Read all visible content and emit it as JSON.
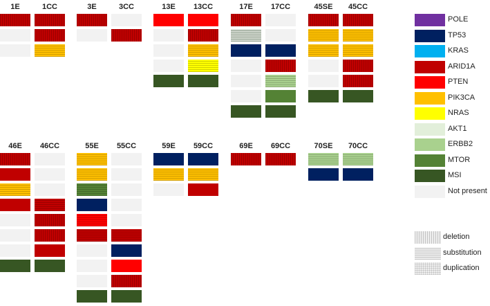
{
  "colors": {
    "POLE": "#7030a0",
    "TP53": "#002060",
    "KRAS": "#00b0f0",
    "ARID1A": "#c00000",
    "PTEN": "#ff0000",
    "PIK3CA": "#ffc000",
    "NRAS": "#ffff00",
    "AKT1": "#e2efda",
    "ERBB2": "#a9d18e",
    "MTOR": "#548235",
    "MSI": "#375623",
    "Not present": "#f2f2f2"
  },
  "legend": {
    "genes": [
      "POLE",
      "TP53",
      "KRAS",
      "ARID1A",
      "PTEN",
      "PIK3CA",
      "NRAS",
      "AKT1",
      "ERBB2",
      "MTOR",
      "MSI",
      "Not present"
    ],
    "patterns": [
      {
        "label": "deletion",
        "pattern": "vertical"
      },
      {
        "label": "substitution",
        "pattern": "horizontal"
      },
      {
        "label": "duplication",
        "pattern": "grid"
      }
    ]
  },
  "groups": [
    {
      "labels": [
        "1E",
        "1CC"
      ],
      "columns": [
        [
          {
            "g": "ARID1A",
            "p": "vertical"
          },
          {
            "g": "Not present",
            "p": "none"
          },
          {
            "g": "Not present",
            "p": "none"
          }
        ],
        [
          {
            "g": "ARID1A",
            "p": "vertical"
          },
          {
            "g": "ARID1A",
            "p": "vertical"
          },
          {
            "g": "PIK3CA",
            "p": "horizontal"
          }
        ]
      ]
    },
    {
      "labels": [
        "3E",
        "3CC"
      ],
      "columns": [
        [
          {
            "g": "ARID1A",
            "p": "vertical"
          },
          {
            "g": "Not present",
            "p": "none"
          }
        ],
        [
          {
            "g": "Not present",
            "p": "none"
          },
          {
            "g": "ARID1A",
            "p": "vertical"
          }
        ]
      ]
    },
    {
      "labels": [
        "13E",
        "13CC"
      ],
      "columns": [
        [
          {
            "g": "PTEN",
            "p": "none"
          },
          {
            "g": "Not present",
            "p": "none"
          },
          {
            "g": "Not present",
            "p": "none"
          },
          {
            "g": "Not present",
            "p": "none"
          },
          {
            "g": "MSI",
            "p": "none"
          }
        ],
        [
          {
            "g": "PTEN",
            "p": "none"
          },
          {
            "g": "ARID1A",
            "p": "vertical"
          },
          {
            "g": "PIK3CA",
            "p": "horizontal"
          },
          {
            "g": "NRAS",
            "p": "horizontal"
          },
          {
            "g": "MSI",
            "p": "none"
          }
        ]
      ]
    },
    {
      "labels": [
        "17E",
        "17CC"
      ],
      "columns": [
        [
          {
            "g": "ARID1A",
            "p": "vertical"
          },
          {
            "g": "Not present",
            "p": "horizontal-gray"
          },
          {
            "g": "TP53",
            "p": "none"
          },
          {
            "g": "Not present",
            "p": "none"
          },
          {
            "g": "Not present",
            "p": "none"
          },
          {
            "g": "Not present",
            "p": "none"
          },
          {
            "g": "MSI",
            "p": "none"
          }
        ],
        [
          {
            "g": "Not present",
            "p": "none"
          },
          {
            "g": "Not present",
            "p": "none"
          },
          {
            "g": "TP53",
            "p": "none"
          },
          {
            "g": "ARID1A",
            "p": "vertical"
          },
          {
            "g": "ERBB2",
            "p": "horizontal"
          },
          {
            "g": "MTOR",
            "p": "none"
          },
          {
            "g": "MSI",
            "p": "none"
          }
        ]
      ]
    },
    {
      "labels": [
        "45SE",
        "45CC"
      ],
      "columns": [
        [
          {
            "g": "ARID1A",
            "p": "vertical"
          },
          {
            "g": "PIK3CA",
            "p": "horizontal"
          },
          {
            "g": "PIK3CA",
            "p": "horizontal"
          },
          {
            "g": "Not present",
            "p": "none"
          },
          {
            "g": "Not present",
            "p": "none"
          },
          {
            "g": "MSI",
            "p": "none"
          }
        ],
        [
          {
            "g": "ARID1A",
            "p": "vertical"
          },
          {
            "g": "PIK3CA",
            "p": "horizontal"
          },
          {
            "g": "PIK3CA",
            "p": "horizontal"
          },
          {
            "g": "ARID1A",
            "p": "vertical"
          },
          {
            "g": "ARID1A",
            "p": "vertical"
          },
          {
            "g": "MSI",
            "p": "none"
          }
        ]
      ]
    },
    {
      "labels": [
        "46E",
        "46CC"
      ],
      "columns": [
        [
          {
            "g": "ARID1A",
            "p": "vertical"
          },
          {
            "g": "ARID1A",
            "p": "none"
          },
          {
            "g": "PIK3CA",
            "p": "horizontal"
          },
          {
            "g": "ARID1A",
            "p": "none"
          },
          {
            "g": "Not present",
            "p": "none"
          },
          {
            "g": "Not present",
            "p": "none"
          },
          {
            "g": "Not present",
            "p": "none"
          },
          {
            "g": "MSI",
            "p": "none"
          }
        ],
        [
          {
            "g": "Not present",
            "p": "none"
          },
          {
            "g": "Not present",
            "p": "none"
          },
          {
            "g": "Not present",
            "p": "none"
          },
          {
            "g": "ARID1A",
            "p": "horizontal"
          },
          {
            "g": "ARID1A",
            "p": "vertical"
          },
          {
            "g": "ARID1A",
            "p": "vertical"
          },
          {
            "g": "ARID1A",
            "p": "none"
          },
          {
            "g": "MSI",
            "p": "none"
          }
        ]
      ]
    },
    {
      "labels": [
        "55E",
        "55CC"
      ],
      "columns": [
        [
          {
            "g": "PIK3CA",
            "p": "horizontal"
          },
          {
            "g": "PIK3CA",
            "p": "horizontal"
          },
          {
            "g": "MTOR",
            "p": "horizontal"
          },
          {
            "g": "TP53",
            "p": "none"
          },
          {
            "g": "PTEN",
            "p": "horizontal"
          },
          {
            "g": "ARID1A",
            "p": "horizontal"
          },
          {
            "g": "Not present",
            "p": "none"
          },
          {
            "g": "Not present",
            "p": "none"
          },
          {
            "g": "Not present",
            "p": "none"
          },
          {
            "g": "MSI",
            "p": "none"
          }
        ],
        [
          {
            "g": "Not present",
            "p": "none"
          },
          {
            "g": "Not present",
            "p": "none"
          },
          {
            "g": "Not present",
            "p": "none"
          },
          {
            "g": "Not present",
            "p": "none"
          },
          {
            "g": "Not present",
            "p": "none"
          },
          {
            "g": "ARID1A",
            "p": "horizontal"
          },
          {
            "g": "TP53",
            "p": "none"
          },
          {
            "g": "PTEN",
            "p": "none"
          },
          {
            "g": "ARID1A",
            "p": "vertical"
          },
          {
            "g": "MSI",
            "p": "none"
          }
        ]
      ]
    },
    {
      "labels": [
        "59E",
        "59CC"
      ],
      "columns": [
        [
          {
            "g": "TP53",
            "p": "none"
          },
          {
            "g": "PIK3CA",
            "p": "horizontal"
          },
          {
            "g": "Not present",
            "p": "none"
          }
        ],
        [
          {
            "g": "TP53",
            "p": "none"
          },
          {
            "g": "PIK3CA",
            "p": "horizontal"
          },
          {
            "g": "ARID1A",
            "p": "none"
          }
        ]
      ]
    },
    {
      "labels": [
        "69E",
        "69CC"
      ],
      "columns": [
        [
          {
            "g": "ARID1A",
            "p": "vertical"
          }
        ],
        [
          {
            "g": "ARID1A",
            "p": "vertical"
          }
        ]
      ]
    },
    {
      "labels": [
        "70SE",
        "70CC"
      ],
      "columns": [
        [
          {
            "g": "ERBB2",
            "p": "horizontal"
          },
          {
            "g": "TP53",
            "p": "none"
          }
        ],
        [
          {
            "g": "ERBB2",
            "p": "horizontal"
          },
          {
            "g": "TP53",
            "p": "none"
          }
        ]
      ]
    }
  ]
}
